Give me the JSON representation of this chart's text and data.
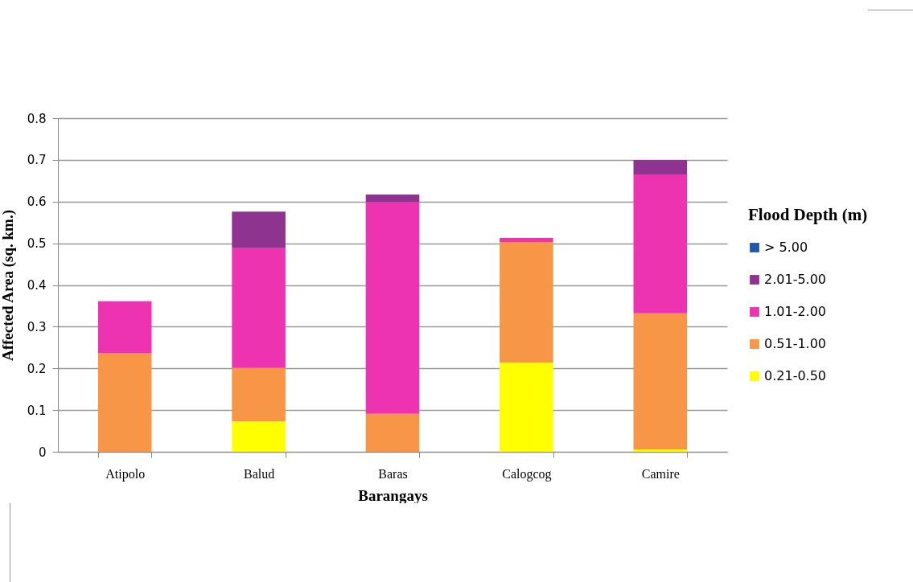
{
  "chart_data": {
    "type": "bar",
    "stacked": true,
    "xlabel": "Barangays",
    "ylabel": "Affected Area (sq. km.)",
    "legend_title": "Flood Depth (m)",
    "categories": [
      "Atipolo",
      "Balud",
      "Baras",
      "Calogcog",
      "Camire"
    ],
    "series": [
      {
        "name": "0.21-0.50",
        "color": "#ffff00",
        "values": [
          0,
          0.073,
          0,
          0.214,
          0.006
        ]
      },
      {
        "name": "0.51-1.00",
        "color": "#f79646",
        "values": [
          0.236,
          0.128,
          0.091,
          0.289,
          0.326
        ]
      },
      {
        "name": "1.01-2.00",
        "color": "#ee33b0",
        "values": [
          0.125,
          0.287,
          0.508,
          0.01,
          0.333
        ]
      },
      {
        "name": "2.01-5.00",
        "color": "#8e3390",
        "values": [
          0,
          0.088,
          0.018,
          0,
          0.035
        ]
      },
      {
        "name": "> 5.00",
        "color": "#2058a8",
        "values": [
          0,
          0,
          0,
          0,
          0
        ]
      }
    ],
    "ylim": [
      0,
      0.8
    ],
    "yticks": [
      0,
      0.1,
      0.2,
      0.3,
      0.4,
      0.5,
      0.6,
      0.7,
      0.8
    ],
    "grid": "y",
    "legend": "right"
  }
}
